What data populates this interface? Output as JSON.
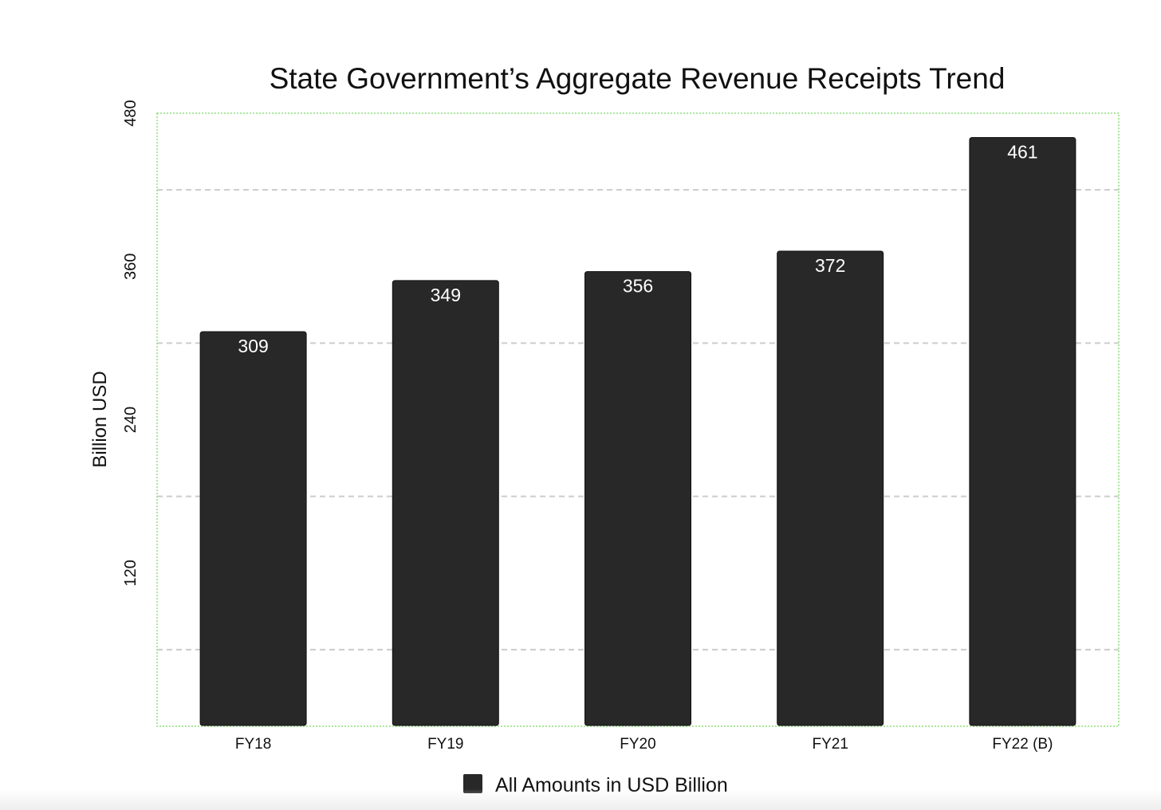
{
  "chart_data": {
    "type": "bar",
    "title": "State Government’s Aggregate Revenue Receipts Trend",
    "ylabel": "Billion USD",
    "xlabel": "",
    "categories": [
      "FY18",
      "FY19",
      "FY20",
      "FY21",
      "FY22 (B)"
    ],
    "series": [
      {
        "name": "All Amounts in USD Billion",
        "values": [
          309,
          349,
          356,
          372,
          461
        ],
        "color": "#282828"
      }
    ],
    "ylim": [
      0,
      480
    ],
    "yticks": [
      120,
      240,
      360,
      480
    ],
    "grid": true,
    "grid_values": [
      60,
      180,
      300,
      420
    ],
    "legend_position": "bottom-center",
    "frame_color": "#8ee07a",
    "grid_color": "#cccccc"
  }
}
